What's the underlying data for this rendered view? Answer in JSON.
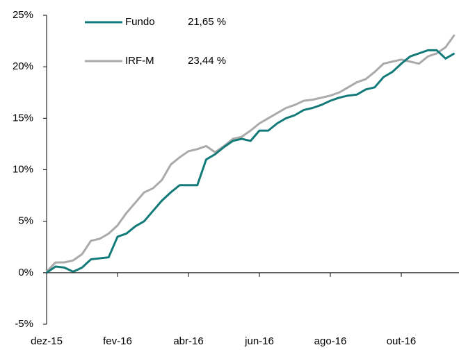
{
  "chart_data": {
    "type": "line",
    "categories": [
      "dez-15",
      null,
      null,
      null,
      null,
      null,
      null,
      null,
      "fev-16",
      null,
      null,
      null,
      null,
      null,
      null,
      null,
      "abr-16",
      null,
      null,
      null,
      null,
      null,
      null,
      null,
      "jun-16",
      null,
      null,
      null,
      null,
      null,
      null,
      null,
      "ago-16",
      null,
      null,
      null,
      null,
      null,
      null,
      null,
      "out-16",
      null,
      null,
      null,
      null,
      null,
      null
    ],
    "series": [
      {
        "name": "Fundo",
        "color": "#127a78",
        "legend_value": "21,65 %",
        "values": [
          0,
          0.6,
          0.5,
          0.1,
          0.5,
          1.3,
          1.4,
          1.5,
          3.5,
          3.8,
          4.5,
          5.0,
          6.0,
          7.0,
          7.8,
          8.5,
          8.5,
          8.5,
          11.0,
          11.5,
          12.2,
          12.8,
          13.0,
          12.8,
          13.8,
          13.8,
          14.5,
          15.0,
          15.3,
          15.8,
          16.0,
          16.3,
          16.7,
          17.0,
          17.2,
          17.3,
          17.8,
          18.0,
          19.0,
          19.5,
          20.3,
          21.0,
          21.3,
          21.6,
          21.6,
          20.8,
          21.3
        ]
      },
      {
        "name": "IRF-M",
        "color": "#aaaaaa",
        "legend_value": "23,44 %",
        "values": [
          0.1,
          1.0,
          1.0,
          1.2,
          1.8,
          3.1,
          3.3,
          3.8,
          4.6,
          5.8,
          6.8,
          7.8,
          8.2,
          9.0,
          10.5,
          11.2,
          11.8,
          12.0,
          12.3,
          11.7,
          12.3,
          13.0,
          13.2,
          13.8,
          14.5,
          15.0,
          15.5,
          16.0,
          16.3,
          16.7,
          16.8,
          17.0,
          17.2,
          17.5,
          18.0,
          18.5,
          18.8,
          19.5,
          20.3,
          20.5,
          20.7,
          20.5,
          20.3,
          21.0,
          21.3,
          21.9,
          23.1
        ]
      }
    ],
    "ylim": [
      -5,
      25
    ],
    "yticks": [
      {
        "value": -5,
        "label": "-5%"
      },
      {
        "value": 0,
        "label": "0%"
      },
      {
        "value": 5,
        "label": "5%"
      },
      {
        "value": 10,
        "label": "10%"
      },
      {
        "value": 15,
        "label": "15%"
      },
      {
        "value": 20,
        "label": "20%"
      },
      {
        "value": 25,
        "label": "25%"
      }
    ],
    "grid": false,
    "legend": "top-left"
  }
}
